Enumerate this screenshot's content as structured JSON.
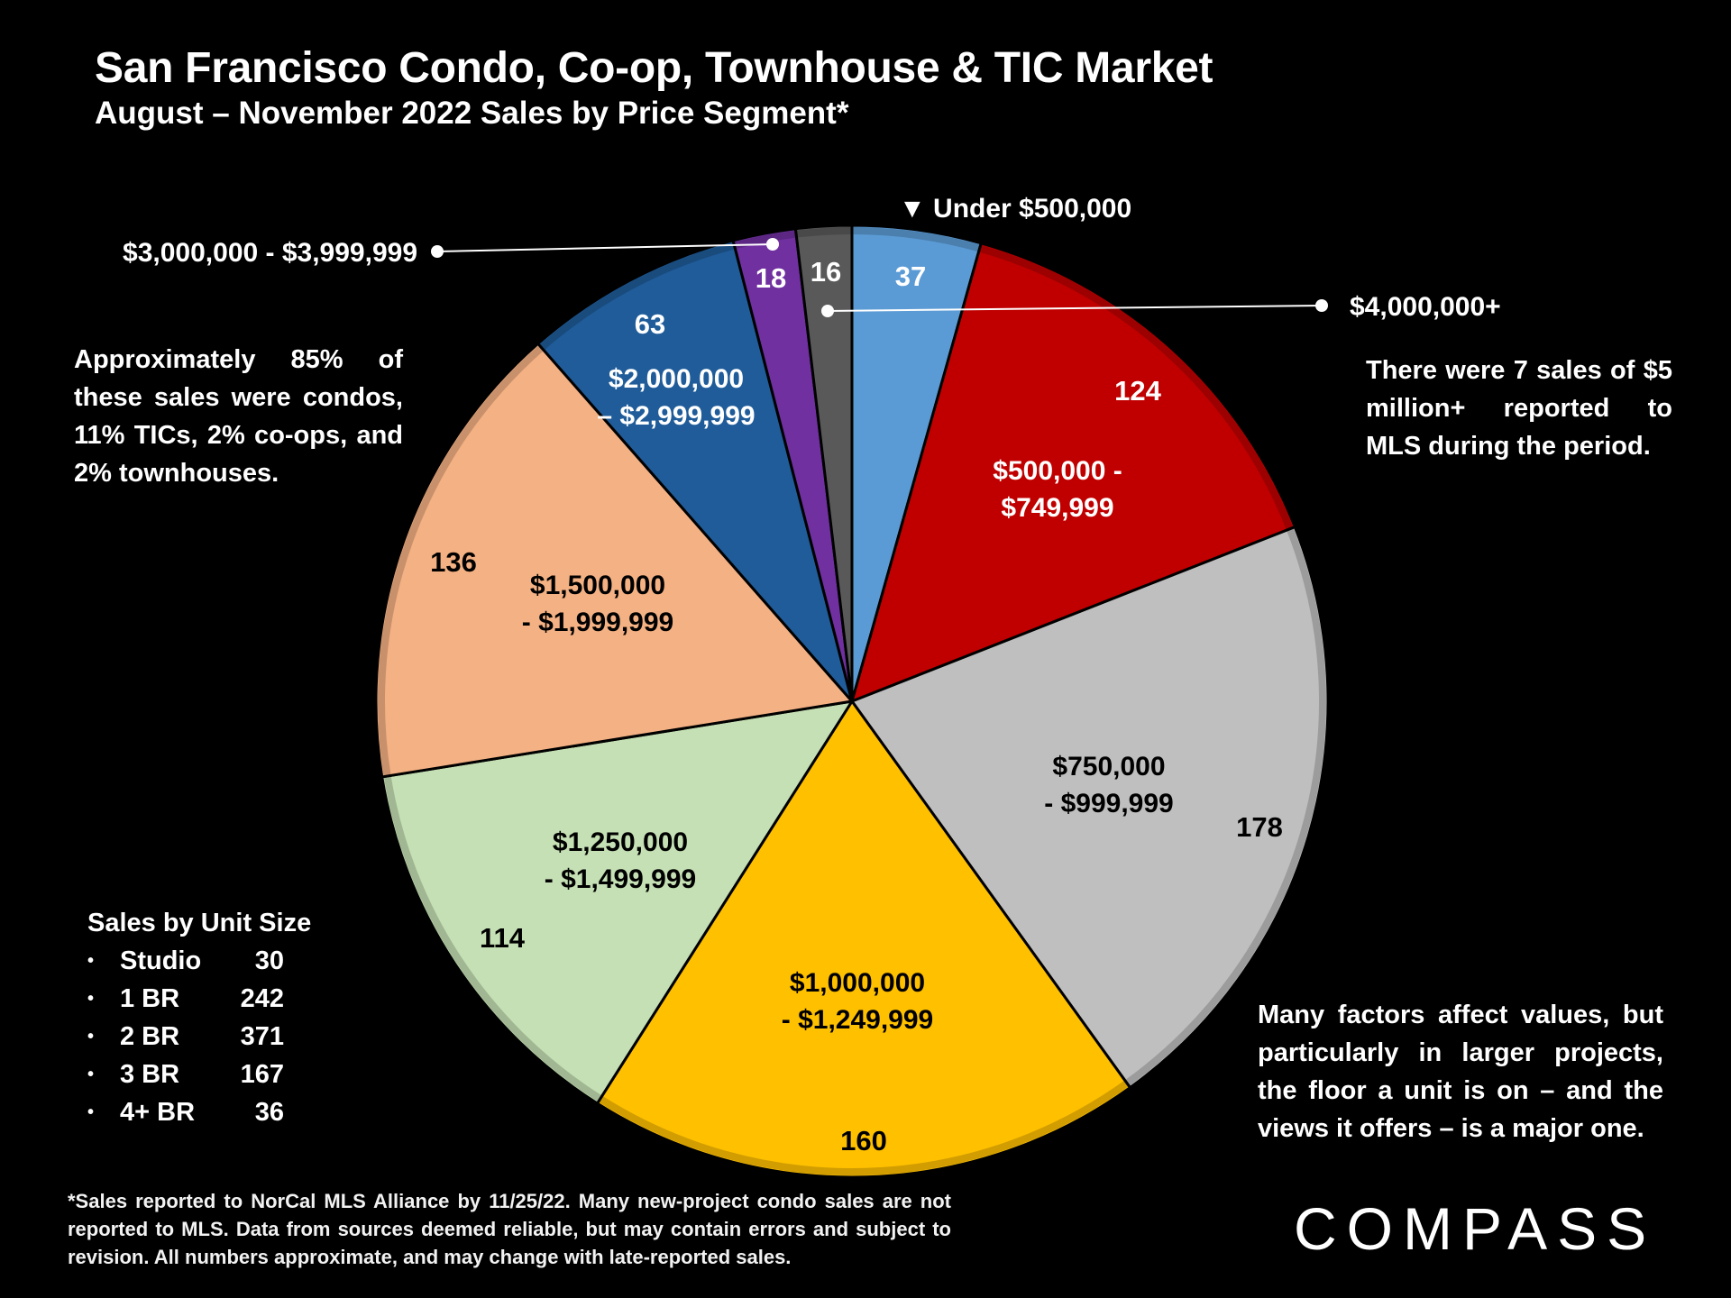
{
  "header": {
    "title": "San Francisco Condo, Co-op, Townhouse & TIC Market",
    "subtitle": "August – November 2022 Sales by Price Segment*"
  },
  "chart_data": {
    "type": "pie",
    "title": "San Francisco Condo, Co-op, Townhouse & TIC Market",
    "subtitle": "August – November 2022 Sales by Price Segment*",
    "slices": [
      {
        "label": "Under $500,000",
        "label_lines": [
          "▼ Under $500,000"
        ],
        "value": 37,
        "color": "#5b9bd5",
        "text_color": "#ffffff"
      },
      {
        "label": "$500,000 - $749,999",
        "label_lines": [
          "$500,000 -",
          "$749,999"
        ],
        "value": 124,
        "color": "#c00000",
        "text_color": "#ffffff"
      },
      {
        "label": "$750,000 - $999,999",
        "label_lines": [
          "$750,000",
          "- $999,999"
        ],
        "value": 178,
        "color": "#bfbfbf",
        "text_color": "#000000"
      },
      {
        "label": "$1,000,000 - $1,249,999",
        "label_lines": [
          "$1,000,000",
          "- $1,249,999"
        ],
        "value": 160,
        "color": "#ffc000",
        "text_color": "#000000"
      },
      {
        "label": "$1,250,000 - $1,499,999",
        "label_lines": [
          "$1,250,000",
          "- $1,499,999"
        ],
        "value": 114,
        "color": "#c5e0b4",
        "text_color": "#000000"
      },
      {
        "label": "$1,500,000 - $1,999,999",
        "label_lines": [
          "$1,500,000",
          "- $1,999,999"
        ],
        "value": 136,
        "color": "#f4b183",
        "text_color": "#000000"
      },
      {
        "label": "$2,000,000 – $2,999,999",
        "label_lines": [
          "$2,000,000",
          "– $2,999,999"
        ],
        "value": 63,
        "color": "#1f5c99",
        "text_color": "#ffffff"
      },
      {
        "label": "$3,000,000 - $3,999,999",
        "label_lines": [
          "$3,000,000 - $3,999,999"
        ],
        "value": 18,
        "color": "#7030a0",
        "text_color": "#ffffff"
      },
      {
        "label": "$4,000,000+",
        "label_lines": [
          "$4,000,000+"
        ],
        "value": 16,
        "color": "#595959",
        "text_color": "#ffffff"
      }
    ]
  },
  "notes": {
    "composition": "Approximately 85% of these sales were condos, 11% TICs, 2% co-ops, and 2% townhouses.",
    "five_million": "There were 7 sales of $5 million+ reported to MLS during the period.",
    "factors": "Many factors affect values, but particularly in larger projects, the floor a unit is on – and the views it offers – is a major one."
  },
  "unit_size": {
    "heading": "Sales by Unit Size",
    "bullet": "•",
    "rows": [
      {
        "label": "Studio",
        "count": "30"
      },
      {
        "label": "1 BR",
        "count": "242"
      },
      {
        "label": "2 BR",
        "count": "371"
      },
      {
        "label": "3 BR",
        "count": "167"
      },
      {
        "label": "4+ BR",
        "count": "36"
      }
    ]
  },
  "footnote": "*Sales reported to NorCal MLS Alliance by 11/25/22. Many new-project condo sales are not reported to MLS. Data from sources deemed reliable, but may contain errors and subject to revision. All numbers approximate, and may change with late-reported sales.",
  "brand": "COMPASS"
}
